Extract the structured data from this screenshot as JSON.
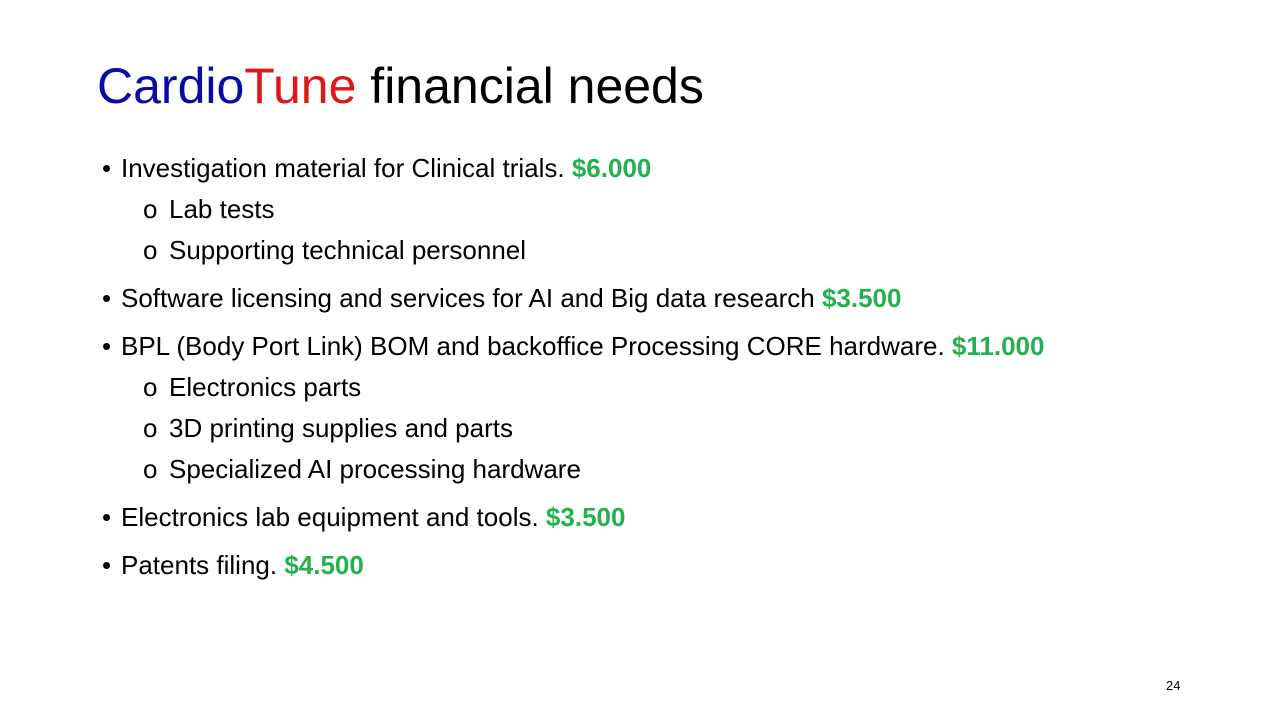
{
  "title": {
    "part1": "Cardio",
    "part2": "Tune",
    "part3": " financial needs",
    "colors": {
      "part1": "#0a0aa5",
      "part2": "#e0161b",
      "part3": "#000000"
    }
  },
  "bullet_symbol": "•",
  "sub_bullet_symbol": "o",
  "amount_color": "#22b14c",
  "items": [
    {
      "text": "Investigation material for Clinical trials. ",
      "amount": "$6.000",
      "subitems": [
        "Lab tests",
        "Supporting technical personnel"
      ]
    },
    {
      "text": "Software licensing and services for AI and Big data research ",
      "amount": "$3.500",
      "subitems": []
    },
    {
      "text": "BPL (Body Port Link) BOM and backoffice Processing CORE hardware. ",
      "amount": "$11.000",
      "subitems": [
        "Electronics parts",
        "3D printing supplies and parts",
        "Specialized AI processing hardware"
      ]
    },
    {
      "text": "Electronics lab equipment and tools. ",
      "amount": "$3.500",
      "subitems": []
    },
    {
      "text": "Patents filing. ",
      "amount": "$4.500",
      "subitems": []
    }
  ],
  "page_number": "24"
}
